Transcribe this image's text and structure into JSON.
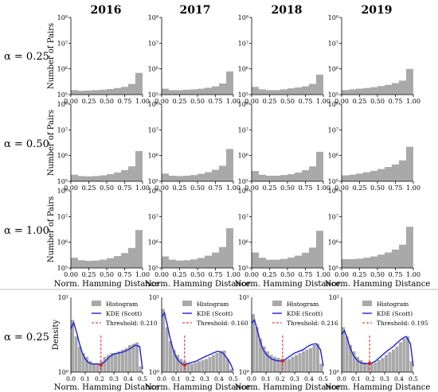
{
  "years": [
    "2016",
    "2017",
    "2018",
    "2019"
  ],
  "rows": [
    {
      "label": "α = 0.25"
    },
    {
      "label": "α = 0.50"
    },
    {
      "label": "α = 1.00"
    },
    {
      "label": "α = 0.25"
    }
  ],
  "colors": {
    "hist": "#a9a9a9",
    "kde": "#1f1fd6",
    "threshold": "#e41a1c",
    "text": "#000000"
  },
  "chart_data": [
    {
      "type": "bar",
      "description_group": "histogram grid (rows alpha 0.25, 0.50, 1.00; columns 2016-2019)",
      "ylabel": "Number of Pairs",
      "xlabel": "Norm. Hamming Distance",
      "xlim": [
        0,
        1
      ],
      "ylim": [
        100000,
        100000000
      ],
      "log_y": true,
      "x_ticks": [
        "0.00",
        "0.25",
        "0.50",
        "0.75",
        "1.00"
      ],
      "y_ticks": [
        "10⁵",
        "10⁶",
        "10⁷",
        "10⁸"
      ],
      "panels": [
        {
          "year": "2016",
          "alpha": "0.25",
          "bin_centers": [
            0.05,
            0.15,
            0.25,
            0.35,
            0.45,
            0.55,
            0.65,
            0.75,
            0.85,
            0.95
          ],
          "counts": [
            150000,
            140000,
            145000,
            150000,
            155000,
            165000,
            180000,
            200000,
            260000,
            700000
          ]
        },
        {
          "year": "2017",
          "alpha": "0.25",
          "bin_centers": [
            0.05,
            0.15,
            0.25,
            0.35,
            0.45,
            0.55,
            0.65,
            0.75,
            0.85,
            0.95
          ],
          "counts": [
            170000,
            150000,
            150000,
            155000,
            160000,
            170000,
            185000,
            210000,
            270000,
            800000
          ]
        },
        {
          "year": "2018",
          "alpha": "0.25",
          "bin_centers": [
            0.05,
            0.15,
            0.25,
            0.35,
            0.45,
            0.55,
            0.65,
            0.75,
            0.85,
            0.95
          ],
          "counts": [
            200000,
            160000,
            150000,
            150000,
            160000,
            175000,
            190000,
            210000,
            260000,
            600000
          ]
        },
        {
          "year": "2019",
          "alpha": "0.25",
          "bin_centers": [
            0.05,
            0.15,
            0.25,
            0.35,
            0.45,
            0.55,
            0.65,
            0.75,
            0.85,
            0.95
          ],
          "counts": [
            150000,
            160000,
            170000,
            180000,
            195000,
            215000,
            240000,
            280000,
            350000,
            1000000
          ]
        },
        {
          "year": "2016",
          "alpha": "0.50",
          "bin_centers": [
            0.05,
            0.15,
            0.25,
            0.35,
            0.45,
            0.55,
            0.65,
            0.75,
            0.85,
            0.95
          ],
          "counts": [
            180000,
            160000,
            155000,
            160000,
            170000,
            190000,
            220000,
            270000,
            380000,
            1500000
          ]
        },
        {
          "year": "2017",
          "alpha": "0.50",
          "bin_centers": [
            0.05,
            0.15,
            0.25,
            0.35,
            0.45,
            0.55,
            0.65,
            0.75,
            0.85,
            0.95
          ],
          "counts": [
            200000,
            165000,
            160000,
            165000,
            175000,
            195000,
            225000,
            280000,
            400000,
            1800000
          ]
        },
        {
          "year": "2018",
          "alpha": "0.50",
          "bin_centers": [
            0.05,
            0.15,
            0.25,
            0.35,
            0.45,
            0.55,
            0.65,
            0.75,
            0.85,
            0.95
          ],
          "counts": [
            250000,
            180000,
            165000,
            165000,
            175000,
            190000,
            220000,
            270000,
            380000,
            1400000
          ]
        },
        {
          "year": "2019",
          "alpha": "0.50",
          "bin_centers": [
            0.05,
            0.15,
            0.25,
            0.35,
            0.45,
            0.55,
            0.65,
            0.75,
            0.85,
            0.95
          ],
          "counts": [
            170000,
            180000,
            200000,
            225000,
            255000,
            300000,
            360000,
            450000,
            650000,
            2200000
          ]
        },
        {
          "year": "2016",
          "alpha": "1.00",
          "bin_centers": [
            0.05,
            0.15,
            0.25,
            0.35,
            0.45,
            0.55,
            0.65,
            0.75,
            0.85,
            0.95
          ],
          "counts": [
            250000,
            200000,
            190000,
            195000,
            210000,
            240000,
            290000,
            380000,
            600000,
            3000000
          ]
        },
        {
          "year": "2017",
          "alpha": "1.00",
          "bin_centers": [
            0.05,
            0.15,
            0.25,
            0.35,
            0.45,
            0.55,
            0.65,
            0.75,
            0.85,
            0.95
          ],
          "counts": [
            280000,
            210000,
            195000,
            200000,
            215000,
            245000,
            300000,
            400000,
            650000,
            3500000
          ]
        },
        {
          "year": "2018",
          "alpha": "1.00",
          "bin_centers": [
            0.05,
            0.15,
            0.25,
            0.35,
            0.45,
            0.55,
            0.65,
            0.75,
            0.85,
            0.95
          ],
          "counts": [
            400000,
            250000,
            210000,
            210000,
            225000,
            255000,
            300000,
            390000,
            620000,
            2800000
          ]
        },
        {
          "year": "2019",
          "alpha": "1.00",
          "bin_centers": [
            0.05,
            0.15,
            0.25,
            0.35,
            0.45,
            0.55,
            0.65,
            0.75,
            0.85,
            0.95
          ],
          "counts": [
            220000,
            220000,
            230000,
            250000,
            280000,
            330000,
            400000,
            520000,
            800000,
            4000000
          ]
        }
      ]
    },
    {
      "type": "line",
      "description_group": "density row (alpha 0.25) with histogram, KDE and threshold",
      "ylabel": "Density",
      "xlabel": "Norm. Hamming Distance",
      "xlim": [
        0,
        0.5
      ],
      "log_y": true,
      "x_ticks": [
        "0.0",
        "0.1",
        "0.2",
        "0.3",
        "0.4",
        "0.5"
      ],
      "y_ticks": [
        "10⁰",
        "10¹"
      ],
      "legend_position": "top-right",
      "legend": [
        "Histogram",
        "KDE (Scott)"
      ],
      "panels": [
        {
          "year": "2016",
          "threshold": 0.21,
          "threshold_label": "Threshold: 0.210",
          "hist": [
            5,
            3,
            2.2,
            1.8,
            1.6,
            1.4,
            1.3,
            1.3,
            1.4,
            1.6,
            1.7,
            1.8,
            1.8,
            1.9,
            2.0,
            2.1,
            2.3,
            2.4,
            2.5,
            1.2
          ],
          "kde_x": [
            0,
            0.02,
            0.04,
            0.06,
            0.08,
            0.1,
            0.12,
            0.14,
            0.16,
            0.18,
            0.21,
            0.24,
            0.27,
            0.3,
            0.33,
            0.36,
            0.39,
            0.42,
            0.45,
            0.48,
            0.5
          ],
          "kde_y": [
            3.8,
            4.6,
            3.4,
            2.4,
            1.8,
            1.5,
            1.35,
            1.3,
            1.28,
            1.3,
            1.25,
            1.4,
            1.6,
            1.75,
            1.8,
            1.85,
            1.95,
            2.1,
            2.3,
            2.2,
            1.1
          ]
        },
        {
          "year": "2017",
          "threshold": 0.16,
          "threshold_label": "Threshold: 0.160",
          "hist": [
            7,
            4,
            2.6,
            2,
            1.7,
            1.5,
            1.4,
            1.3,
            1.3,
            1.35,
            1.4,
            1.45,
            1.5,
            1.6,
            1.7,
            1.8,
            1.9,
            1.95,
            1.5,
            1.1
          ],
          "kde_x": [
            0,
            0.02,
            0.04,
            0.06,
            0.08,
            0.1,
            0.12,
            0.14,
            0.16,
            0.18,
            0.21,
            0.24,
            0.27,
            0.3,
            0.33,
            0.36,
            0.39,
            0.42,
            0.45,
            0.48,
            0.5
          ],
          "kde_y": [
            5.5,
            6.2,
            4.2,
            2.8,
            2.0,
            1.6,
            1.4,
            1.3,
            1.25,
            1.3,
            1.35,
            1.4,
            1.5,
            1.6,
            1.7,
            1.8,
            1.9,
            1.85,
            1.6,
            1.3,
            1.05
          ]
        },
        {
          "year": "2018",
          "threshold": 0.216,
          "threshold_label": "Threshold: 0.216",
          "hist": [
            6,
            4,
            2.8,
            2.2,
            1.9,
            1.7,
            1.6,
            1.55,
            1.5,
            1.45,
            1.5,
            1.6,
            1.7,
            1.8,
            1.9,
            2.0,
            2.1,
            2.3,
            2.4,
            1.3
          ],
          "kde_x": [
            0,
            0.02,
            0.04,
            0.06,
            0.08,
            0.1,
            0.12,
            0.14,
            0.16,
            0.18,
            0.21,
            0.24,
            0.27,
            0.3,
            0.33,
            0.36,
            0.39,
            0.42,
            0.45,
            0.48,
            0.5
          ],
          "kde_y": [
            4.5,
            5.0,
            3.6,
            2.6,
            2.0,
            1.75,
            1.6,
            1.5,
            1.45,
            1.42,
            1.4,
            1.5,
            1.65,
            1.8,
            1.9,
            2.0,
            2.2,
            2.35,
            2.4,
            2.0,
            1.2
          ]
        },
        {
          "year": "2019",
          "threshold": 0.195,
          "threshold_label": "Threshold: 0.195",
          "hist": [
            4,
            3,
            2.3,
            1.9,
            1.6,
            1.45,
            1.35,
            1.3,
            1.3,
            1.35,
            1.45,
            1.55,
            1.7,
            1.85,
            2.0,
            2.2,
            2.5,
            2.8,
            3.0,
            1.4
          ],
          "kde_x": [
            0,
            0.02,
            0.04,
            0.06,
            0.08,
            0.1,
            0.12,
            0.14,
            0.16,
            0.18,
            0.21,
            0.24,
            0.27,
            0.3,
            0.33,
            0.36,
            0.39,
            0.42,
            0.45,
            0.48,
            0.5
          ],
          "kde_y": [
            3.2,
            3.6,
            2.8,
            2.1,
            1.7,
            1.5,
            1.38,
            1.32,
            1.3,
            1.3,
            1.32,
            1.42,
            1.6,
            1.8,
            2.0,
            2.2,
            2.5,
            2.8,
            3.0,
            2.4,
            1.2
          ]
        }
      ]
    }
  ]
}
